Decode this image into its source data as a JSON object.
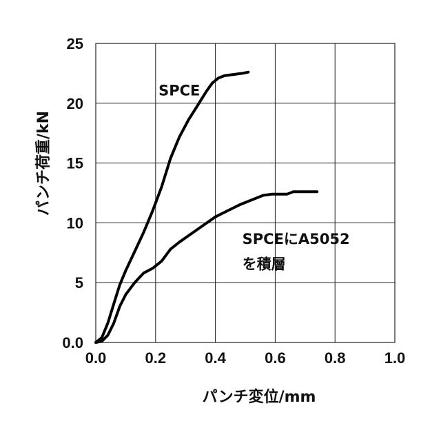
{
  "chart_data": {
    "type": "line",
    "xlabel": "パンチ変位/mm",
    "ylabel": "パンチ荷重/kN",
    "xlim": [
      0,
      1.0
    ],
    "ylim": [
      0,
      25
    ],
    "xticks": [
      0,
      0.2,
      0.4,
      0.6,
      0.8,
      1.0
    ],
    "xtick_labels": [
      "0.0",
      "0.2",
      "0.4",
      "0.6",
      "0.8",
      "1.0"
    ],
    "yticks": [
      0,
      5,
      10,
      15,
      20,
      25
    ],
    "ytick_labels": [
      "0.0",
      "5",
      "10",
      "15",
      "20",
      "25"
    ],
    "grid": true,
    "series": [
      {
        "name": "SPCE",
        "x": [
          0,
          0.02,
          0.04,
          0.06,
          0.08,
          0.1,
          0.13,
          0.16,
          0.19,
          0.22,
          0.25,
          0.28,
          0.31,
          0.34,
          0.37,
          0.39,
          0.41,
          0.43,
          0.46,
          0.49,
          0.51
        ],
        "y": [
          0,
          0.4,
          1.6,
          3.2,
          4.8,
          6.0,
          7.6,
          9.2,
          11.0,
          13.0,
          15.4,
          17.2,
          18.6,
          19.8,
          21.0,
          21.7,
          22.1,
          22.3,
          22.4,
          22.5,
          22.6
        ]
      },
      {
        "name": "SPCEにA5052を積層",
        "x": [
          0,
          0.02,
          0.04,
          0.06,
          0.08,
          0.1,
          0.13,
          0.16,
          0.19,
          0.22,
          0.25,
          0.28,
          0.32,
          0.36,
          0.4,
          0.44,
          0.48,
          0.52,
          0.56,
          0.59,
          0.62,
          0.64,
          0.66,
          0.68,
          0.7,
          0.72,
          0.74
        ],
        "y": [
          0,
          0.1,
          0.6,
          1.6,
          3.0,
          4.0,
          5.0,
          5.8,
          6.2,
          6.8,
          7.8,
          8.4,
          9.1,
          9.8,
          10.5,
          11.0,
          11.5,
          11.9,
          12.3,
          12.4,
          12.4,
          12.4,
          12.6,
          12.6,
          12.6,
          12.6,
          12.6
        ]
      }
    ],
    "annotations": [
      {
        "text": "SPCE",
        "x": 0.21,
        "y": 21.1
      },
      {
        "text": "SPCEにA5052",
        "x": 0.49,
        "y": 8.7
      },
      {
        "text": "を積層",
        "x": 0.49,
        "y": 6.6
      }
    ]
  }
}
